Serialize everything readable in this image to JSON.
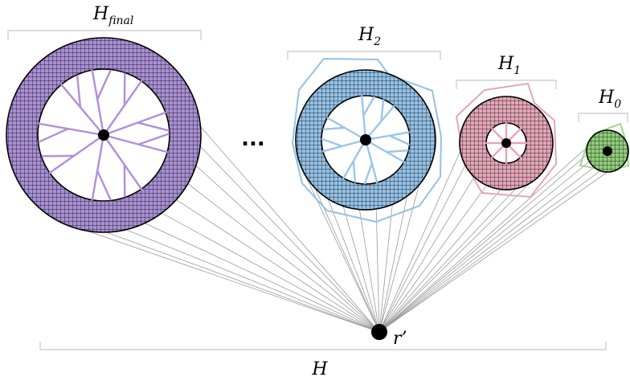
{
  "labels": {
    "h_final": {
      "base": "H",
      "sub": "final"
    },
    "h2": {
      "base": "H",
      "sub": "2"
    },
    "h1": {
      "base": "H",
      "sub": "1"
    },
    "h0": {
      "base": "H",
      "sub": "0"
    },
    "h_total": "H",
    "root": "r’",
    "ellipsis": "..."
  },
  "colors": {
    "h_final": "#a98fd3",
    "h2": "#94c1e6",
    "h1": "#e3a6b8",
    "h0": "#90cd7a",
    "branch_final": "#b08fd8",
    "branch_h2": "#9cc5ea",
    "branch_h1": "#e9a3b8",
    "outline_h0": "#9fd88a"
  }
}
